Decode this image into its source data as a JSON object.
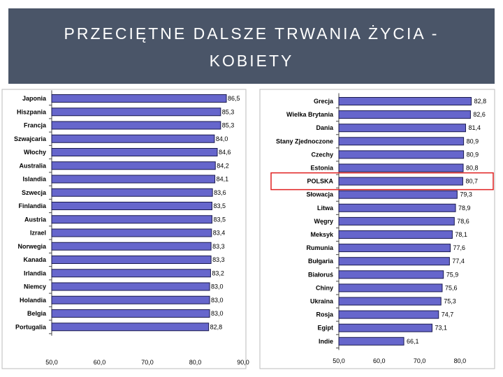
{
  "title": {
    "line1": "PRZECIĘTNE DALSZE TRWANIA ŻYCIA -",
    "line2": "KOBIETY"
  },
  "colors": {
    "header_bg": "#4a5568",
    "bar_fill": "#6666cc",
    "bar_stroke": "#1a1a4d",
    "highlight": "#e02020"
  },
  "chart_data": [
    {
      "type": "bar",
      "orientation": "horizontal",
      "categories": [
        "Japonia",
        "Hiszpania",
        "Francja",
        "Szwajcaria",
        "Włochy",
        "Australia",
        "Islandia",
        "Szwecja",
        "Finlandia",
        "Austria",
        "Izrael",
        "Norwegia",
        "Kanada",
        "Irlandia",
        "Niemcy",
        "Holandia",
        "Belgia",
        "Portugalia"
      ],
      "values": [
        86.5,
        85.3,
        85.3,
        84.0,
        84.6,
        84.2,
        84.1,
        83.6,
        83.5,
        83.5,
        83.4,
        83.3,
        83.3,
        83.2,
        83.0,
        83.0,
        83.0,
        82.8
      ],
      "value_labels": [
        "86,5",
        "85,3",
        "85,3",
        "84,0",
        "84,6",
        "84,2",
        "84,1",
        "83,6",
        "83,5",
        "83,5",
        "83,4",
        "83,3",
        "83,3",
        "83,2",
        "83,0",
        "83,0",
        "83,0",
        "82,8"
      ],
      "xlim": [
        50,
        90
      ],
      "xticks": [
        "50,0",
        "60,0",
        "70,0",
        "80,0",
        "90,0"
      ],
      "grid": false
    },
    {
      "type": "bar",
      "orientation": "horizontal",
      "categories": [
        "Grecja",
        "Wielka Brytania",
        "Dania",
        "Stany Zjednoczone",
        "Czechy",
        "Estonia",
        "POLSKA",
        "Słowacja",
        "Litwa",
        "Węgry",
        "Meksyk",
        "Rumunia",
        "Bułgaria",
        "Białoruś",
        "Chiny",
        "Ukraina",
        "Rosja",
        "Egipt",
        "Indie"
      ],
      "values": [
        82.8,
        82.6,
        81.4,
        80.9,
        80.9,
        80.8,
        80.7,
        79.3,
        78.9,
        78.6,
        78.1,
        77.6,
        77.4,
        75.9,
        75.6,
        75.3,
        74.7,
        73.1,
        66.1
      ],
      "value_labels": [
        "82,8",
        "82,6",
        "81,4",
        "80,9",
        "80,9",
        "80,8",
        "80,7",
        "79,3",
        "78,9",
        "78,6",
        "78,1",
        "77,6",
        "77,4",
        "75,9",
        "75,6",
        "75,3",
        "74,7",
        "73,1",
        "66,1"
      ],
      "highlight_category": "POLSKA",
      "xlim": [
        50,
        80
      ],
      "xticks": [
        "50,0",
        "60,0",
        "70,0",
        "80,0"
      ],
      "grid": false
    }
  ]
}
